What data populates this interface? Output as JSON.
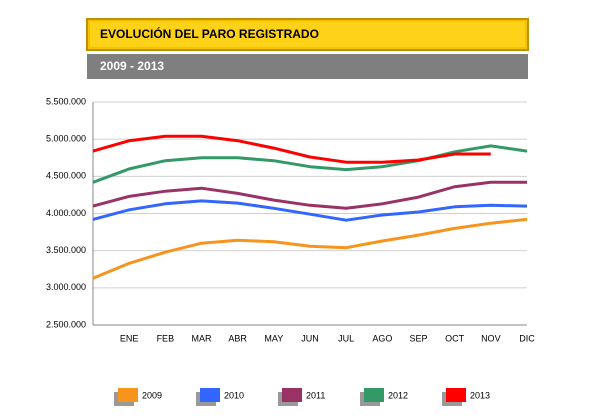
{
  "chart_data": {
    "type": "line",
    "title": "EVOLUCIÓN DEL PARO REGISTRADO",
    "subtitle": "2009 - 2013",
    "categories": [
      null,
      "ENE",
      "FEB",
      "MAR",
      "ABR",
      "MAY",
      "JUN",
      "JUL",
      "AGO",
      "SEP",
      "OCT",
      "NOV",
      "DIC"
    ],
    "series": [
      {
        "name": "2009",
        "color": "#f7941d",
        "values": [
          3130000,
          3330000,
          3480000,
          3600000,
          3640000,
          3620000,
          3560000,
          3540000,
          3630000,
          3710000,
          3800000,
          3870000,
          3920000
        ]
      },
      {
        "name": "2010",
        "color": "#3366ff",
        "values": [
          3920000,
          4050000,
          4130000,
          4170000,
          4140000,
          4070000,
          3990000,
          3910000,
          3980000,
          4020000,
          4090000,
          4110000,
          4100000
        ]
      },
      {
        "name": "2011",
        "color": "#993366",
        "values": [
          4100000,
          4230000,
          4300000,
          4340000,
          4270000,
          4180000,
          4110000,
          4070000,
          4130000,
          4220000,
          4360000,
          4420000,
          4420000
        ]
      },
      {
        "name": "2012",
        "color": "#339966",
        "values": [
          4420000,
          4600000,
          4710000,
          4750000,
          4750000,
          4710000,
          4630000,
          4590000,
          4630000,
          4710000,
          4830000,
          4910000,
          4840000
        ]
      },
      {
        "name": "2013",
        "color": "#ff0000",
        "values": [
          4840000,
          4980000,
          5040000,
          5040000,
          4980000,
          4880000,
          4760000,
          4690000,
          4690000,
          4720000,
          4800000,
          4800000,
          null
        ]
      }
    ],
    "ylim": [
      2500000,
      5500000
    ],
    "yticks": [
      {
        "value": 2500000,
        "label": "2.500.000"
      },
      {
        "value": 3000000,
        "label": "3.000.000"
      },
      {
        "value": 3500000,
        "label": "3.500.000"
      },
      {
        "value": 4000000,
        "label": "4.000.000"
      },
      {
        "value": 4500000,
        "label": "4.500.000"
      },
      {
        "value": 5000000,
        "label": "5.000.000"
      },
      {
        "value": 5500000,
        "label": "5.500.000"
      }
    ],
    "grid": true
  }
}
